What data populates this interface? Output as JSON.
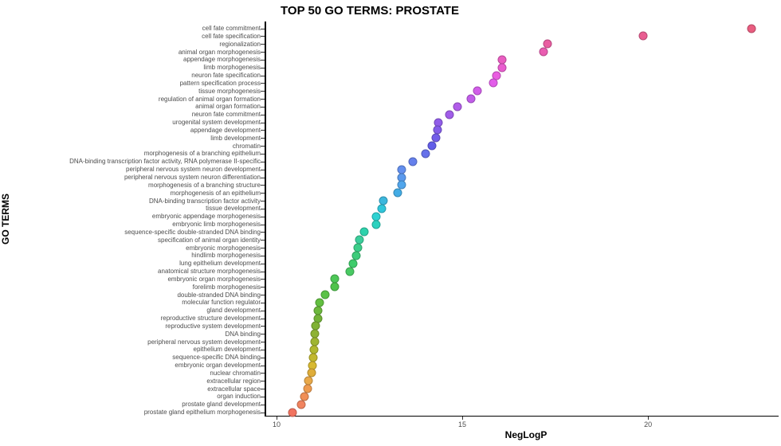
{
  "chart_data": {
    "type": "scatter",
    "title": "TOP 50 GO TERMS: PROSTATE",
    "xlabel": "NegLogP",
    "ylabel": "GO TERMS",
    "xlim": [
      9.7,
      23.45
    ],
    "x_ticks": [
      "10",
      "15",
      "20"
    ],
    "x_tick_values": [
      10,
      15,
      20
    ],
    "grid": false,
    "legend": "none",
    "points": [
      {
        "term": "cell fate commitment",
        "neglogp": 22.79,
        "color": "hsl(345,76%,64%)"
      },
      {
        "term": "cell fate specification",
        "neglogp": 19.86,
        "color": "hsl(338,76%,64%)"
      },
      {
        "term": "regionalization",
        "neglogp": 17.29,
        "color": "hsl(331,76%,64%)"
      },
      {
        "term": "animal organ morphogenesis",
        "neglogp": 17.19,
        "color": "hsl(324,76%,64%)"
      },
      {
        "term": "appendage morphogenesis",
        "neglogp": 16.07,
        "color": "hsl(317,76%,64%)"
      },
      {
        "term": "limb morphogenesis",
        "neglogp": 16.07,
        "color": "hsl(311,76%,64%)"
      },
      {
        "term": "neuron fate specification",
        "neglogp": 15.92,
        "color": "hsl(304,76%,64%)"
      },
      {
        "term": "pattern specification process",
        "neglogp": 15.83,
        "color": "hsl(297,76%,64%)"
      },
      {
        "term": "tissue morphogenesis",
        "neglogp": 15.4,
        "color": "hsl(290,76%,64%)"
      },
      {
        "term": "regulation of animal organ formation",
        "neglogp": 15.23,
        "color": "hsl(283,76%,64%)"
      },
      {
        "term": "animal organ formation",
        "neglogp": 14.86,
        "color": "hsl(276,76%,64%)"
      },
      {
        "term": "neuron fate commitment",
        "neglogp": 14.65,
        "color": "hsl(269,76%,64%)"
      },
      {
        "term": "urogenital system development",
        "neglogp": 14.35,
        "color": "hsl(262,76%,64%)"
      },
      {
        "term": "appendage development",
        "neglogp": 14.33,
        "color": "hsl(256,76%,64%)"
      },
      {
        "term": "limb development",
        "neglogp": 14.3,
        "color": "hsl(249,76%,64%)"
      },
      {
        "term": "chromatin",
        "neglogp": 14.18,
        "color": "hsl(242,76%,64%)"
      },
      {
        "term": "morphogenesis of a branching epithelium",
        "neglogp": 14.01,
        "color": "hsl(235,76%,66%)"
      },
      {
        "term": "DNA-binding transcription factor activity, RNA polymerase II-specific",
        "neglogp": 13.67,
        "color": "hsl(228,78%,66%)"
      },
      {
        "term": "peripheral nervous system neuron development",
        "neglogp": 13.37,
        "color": "hsl(221,80%,66%)"
      },
      {
        "term": "peripheral nervous system neuron differentiation",
        "neglogp": 13.37,
        "color": "hsl(214,80%,64%)"
      },
      {
        "term": "morphogenesis of a branching structure",
        "neglogp": 13.37,
        "color": "hsl(207,80%,62%)"
      },
      {
        "term": "morphogenesis of an epithelium",
        "neglogp": 13.26,
        "color": "hsl(201,76%,58%)"
      },
      {
        "term": "DNA-binding transcription factor activity",
        "neglogp": 12.87,
        "color": "hsl(194,70%,55%)"
      },
      {
        "term": "tissue development",
        "neglogp": 12.83,
        "color": "hsl(187,70%,52%)"
      },
      {
        "term": "embryonic appendage morphogenesis",
        "neglogp": 12.68,
        "color": "hsl(180,65%,50%)"
      },
      {
        "term": "embryonic limb morphogenesis",
        "neglogp": 12.68,
        "color": "hsl(173,65%,50%)"
      },
      {
        "term": "sequence-specific double-stranded DNA binding",
        "neglogp": 12.36,
        "color": "hsl(166,65%,50%)"
      },
      {
        "term": "specification of animal organ identity",
        "neglogp": 12.23,
        "color": "hsl(159,60%,52%)"
      },
      {
        "term": "embryonic morphogenesis",
        "neglogp": 12.18,
        "color": "hsl(152,60%,52%)"
      },
      {
        "term": "hindlimb morphogenesis",
        "neglogp": 12.14,
        "color": "hsl(146,58%,52%)"
      },
      {
        "term": "lung epithelium development",
        "neglogp": 12.06,
        "color": "hsl(139,58%,52%)"
      },
      {
        "term": "anatomical structure morphogenesis",
        "neglogp": 11.97,
        "color": "hsl(132,55%,54%)"
      },
      {
        "term": "embryonic organ morphogenesis",
        "neglogp": 11.57,
        "color": "hsl(125,52%,54%)"
      },
      {
        "term": "forelimb morphogenesis",
        "neglogp": 11.57,
        "color": "hsl(118,50%,53%)"
      },
      {
        "term": "double-stranded DNA binding",
        "neglogp": 11.3,
        "color": "hsl(111,50%,52%)"
      },
      {
        "term": "molecular function regulator",
        "neglogp": 11.16,
        "color": "hsl(104,50%,50%)"
      },
      {
        "term": "gland development",
        "neglogp": 11.12,
        "color": "hsl(97,50%,48%)"
      },
      {
        "term": "reproductive structure development",
        "neglogp": 11.12,
        "color": "hsl(91,52%,46%)"
      },
      {
        "term": "reproductive system development",
        "neglogp": 11.06,
        "color": "hsl(84,55%,45%)"
      },
      {
        "term": "DNA binding",
        "neglogp": 11.04,
        "color": "hsl(77,55%,45%)"
      },
      {
        "term": "peripheral nervous system development",
        "neglogp": 11.03,
        "color": "hsl(70,58%,45%)"
      },
      {
        "term": "epithelium development",
        "neglogp": 11.01,
        "color": "hsl(63,60%,45%)"
      },
      {
        "term": "sequence-specific DNA binding",
        "neglogp": 10.99,
        "color": "hsl(56,62%,47%)"
      },
      {
        "term": "embryonic organ development",
        "neglogp": 10.96,
        "color": "hsl(49,68%,52%)"
      },
      {
        "term": "nuclear chromatin",
        "neglogp": 10.94,
        "color": "hsl(42,72%,55%)"
      },
      {
        "term": "extracellular region",
        "neglogp": 10.86,
        "color": "hsl(36,78%,60%)"
      },
      {
        "term": "extracellular space",
        "neglogp": 10.84,
        "color": "hsl(29,82%,62%)"
      },
      {
        "term": "organ induction",
        "neglogp": 10.75,
        "color": "hsl(22,84%,64%)"
      },
      {
        "term": "prostate gland development",
        "neglogp": 10.66,
        "color": "hsl(15,84%,66%)"
      },
      {
        "term": "prostate gland epithelium morphogenesis",
        "neglogp": 10.43,
        "color": "hsl(8,84%,66%)"
      }
    ]
  }
}
